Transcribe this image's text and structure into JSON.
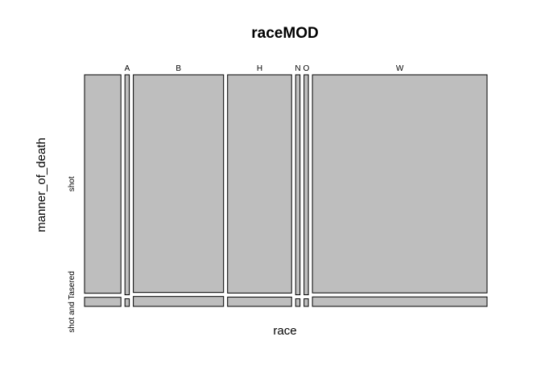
{
  "chart_data": {
    "type": "mosaic",
    "title": "raceMOD",
    "xlabel": "race",
    "ylabel": "manner_of_death",
    "categories": [
      "",
      "A",
      "B",
      "H",
      "N",
      "O",
      "W"
    ],
    "levels": [
      "shot",
      "shot and Tasered"
    ],
    "column_totals": [
      250,
      30,
      620,
      440,
      30,
      30,
      1200
    ],
    "series": [
      {
        "name": "shot",
        "values": [
          240,
          29,
          593,
          422,
          29,
          29,
          1150
        ]
      },
      {
        "name": "shot and Tasered",
        "values": [
          10,
          1,
          27,
          18,
          1,
          1,
          50
        ]
      }
    ],
    "fill_color": "#bebebe",
    "stroke_color": "#000000",
    "grid": false,
    "legend": "none"
  }
}
